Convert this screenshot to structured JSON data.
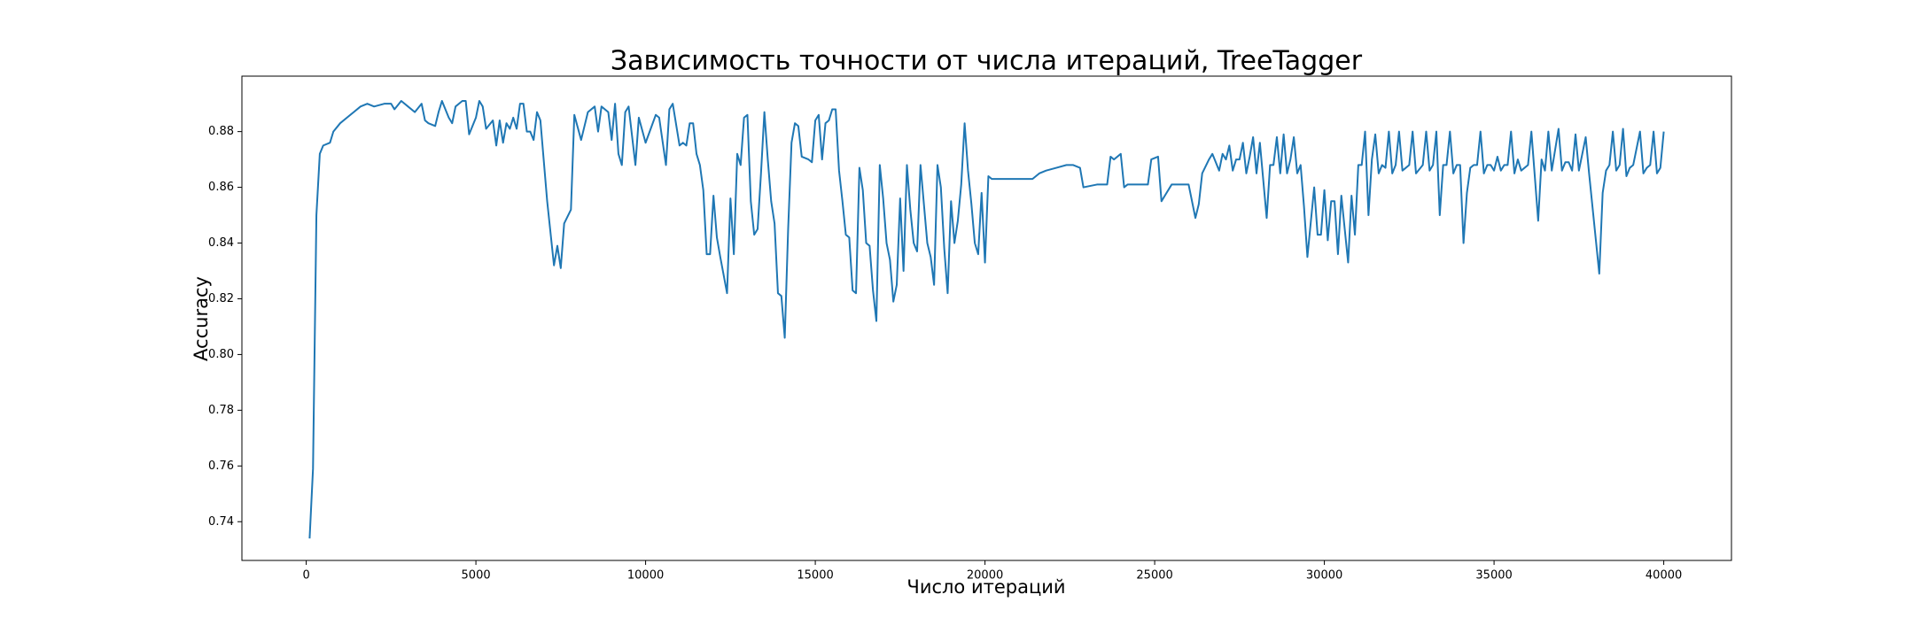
{
  "chart_data": {
    "type": "line",
    "title": "Зависимость точности от числа итераций, TreeTagger",
    "xlabel": "Число итераций",
    "ylabel": "Accuracy",
    "color": "#1f77b4",
    "x": [
      100,
      200,
      300,
      400,
      500,
      700,
      800,
      1000,
      1200,
      1400,
      1600,
      1800,
      2000,
      2300,
      2500,
      2600,
      2800,
      3000,
      3200,
      3400,
      3500,
      3600,
      3800,
      3900,
      4000,
      4200,
      4300,
      4400,
      4600,
      4700,
      4800,
      5000,
      5100,
      5200,
      5300,
      5500,
      5600,
      5700,
      5800,
      5900,
      6000,
      6100,
      6200,
      6300,
      6400,
      6500,
      6600,
      6700,
      6800,
      6900,
      7100,
      7300,
      7400,
      7500,
      7600,
      7800,
      7900,
      8100,
      8300,
      8500,
      8600,
      8700,
      8900,
      9000,
      9100,
      9200,
      9300,
      9400,
      9500,
      9700,
      9800,
      10000,
      10300,
      10400,
      10600,
      10700,
      10800,
      11000,
      11100,
      11200,
      11300,
      11400,
      11500,
      11600,
      11700,
      11800,
      11900,
      12000,
      12100,
      12200,
      12400,
      12500,
      12600,
      12700,
      12800,
      12900,
      13000,
      13100,
      13200,
      13300,
      13400,
      13500,
      13600,
      13700,
      13800,
      13900,
      14000,
      14100,
      14200,
      14300,
      14400,
      14500,
      14600,
      14800,
      14900,
      15000,
      15100,
      15200,
      15300,
      15400,
      15500,
      15600,
      15700,
      15800,
      15900,
      16000,
      16100,
      16200,
      16300,
      16400,
      16500,
      16600,
      16700,
      16800,
      16900,
      17000,
      17100,
      17200,
      17300,
      17400,
      17500,
      17600,
      17700,
      17800,
      17900,
      18000,
      18100,
      18300,
      18400,
      18500,
      18600,
      18700,
      18800,
      18900,
      19000,
      19100,
      19200,
      19300,
      19400,
      19500,
      19600,
      19700,
      19800,
      19900,
      20000,
      20100,
      20200,
      20300,
      20600,
      21000,
      21400,
      21500,
      21600,
      21800,
      22100,
      22400,
      22600,
      22800,
      22900,
      23300,
      23600,
      23700,
      23800,
      24000,
      24100,
      24200,
      24600,
      24800,
      24900,
      25100,
      25200,
      25300,
      25500,
      25900,
      26000,
      26200,
      26300,
      26400,
      26600,
      26700,
      26900,
      27000,
      27100,
      27200,
      27300,
      27400,
      27500,
      27600,
      27700,
      27800,
      27900,
      28000,
      28100,
      28300,
      28400,
      28500,
      28600,
      28700,
      28800,
      28900,
      29000,
      29100,
      29200,
      29300,
      29400,
      29500,
      29700,
      29800,
      29900,
      30000,
      30100,
      30200,
      30300,
      30400,
      30500,
      30600,
      30700,
      30800,
      30900,
      31000,
      31100,
      31200,
      31300,
      31400,
      31500,
      31600,
      31700,
      31800,
      31900,
      32000,
      32100,
      32200,
      32300,
      32400,
      32500,
      32600,
      32700,
      32900,
      33000,
      33100,
      33200,
      33300,
      33400,
      33500,
      33600,
      33700,
      33800,
      33900,
      34000,
      34100,
      34200,
      34300,
      34400,
      34500,
      34600,
      34700,
      34800,
      34900,
      35000,
      35100,
      35200,
      35300,
      35400,
      35500,
      35600,
      35700,
      35800,
      36000,
      36100,
      36300,
      36400,
      36500,
      36600,
      36700,
      36900,
      37000,
      37100,
      37200,
      37300,
      37400,
      37500,
      37700,
      37800,
      38100,
      38200,
      38300,
      38400,
      38500,
      38600,
      38700,
      38800,
      38900,
      39000,
      39100,
      39300,
      39400,
      39500,
      39600,
      39700,
      39800,
      39900,
      40000
    ],
    "values": [
      0.734,
      0.759,
      0.85,
      0.872,
      0.875,
      0.876,
      0.88,
      0.883,
      0.885,
      0.887,
      0.889,
      0.89,
      0.889,
      0.89,
      0.89,
      0.888,
      0.891,
      0.889,
      0.887,
      0.89,
      0.884,
      0.883,
      0.882,
      0.887,
      0.891,
      0.885,
      0.883,
      0.889,
      0.891,
      0.891,
      0.879,
      0.885,
      0.891,
      0.889,
      0.881,
      0.884,
      0.875,
      0.884,
      0.876,
      0.883,
      0.881,
      0.885,
      0.881,
      0.89,
      0.89,
      0.88,
      0.88,
      0.877,
      0.887,
      0.884,
      0.855,
      0.832,
      0.839,
      0.831,
      0.847,
      0.852,
      0.886,
      0.877,
      0.887,
      0.889,
      0.88,
      0.889,
      0.887,
      0.877,
      0.89,
      0.872,
      0.868,
      0.887,
      0.889,
      0.868,
      0.885,
      0.876,
      0.886,
      0.885,
      0.868,
      0.888,
      0.89,
      0.875,
      0.876,
      0.875,
      0.883,
      0.883,
      0.872,
      0.868,
      0.859,
      0.836,
      0.836,
      0.857,
      0.842,
      0.835,
      0.822,
      0.856,
      0.836,
      0.872,
      0.868,
      0.885,
      0.886,
      0.855,
      0.843,
      0.845,
      0.865,
      0.887,
      0.87,
      0.855,
      0.847,
      0.822,
      0.821,
      0.806,
      0.845,
      0.876,
      0.883,
      0.882,
      0.871,
      0.87,
      0.869,
      0.884,
      0.886,
      0.87,
      0.883,
      0.884,
      0.888,
      0.888,
      0.866,
      0.855,
      0.843,
      0.842,
      0.823,
      0.822,
      0.867,
      0.859,
      0.84,
      0.839,
      0.823,
      0.812,
      0.868,
      0.856,
      0.84,
      0.834,
      0.819,
      0.825,
      0.856,
      0.83,
      0.868,
      0.852,
      0.84,
      0.837,
      0.868,
      0.84,
      0.835,
      0.825,
      0.868,
      0.86,
      0.838,
      0.822,
      0.855,
      0.84,
      0.848,
      0.861,
      0.883,
      0.866,
      0.854,
      0.84,
      0.836,
      0.858,
      0.833,
      0.864,
      0.863,
      0.863,
      0.863,
      0.863,
      0.863,
      0.864,
      0.865,
      0.866,
      0.867,
      0.868,
      0.868,
      0.867,
      0.86,
      0.861,
      0.861,
      0.871,
      0.87,
      0.872,
      0.86,
      0.861,
      0.861,
      0.861,
      0.87,
      0.871,
      0.855,
      0.857,
      0.861,
      0.861,
      0.861,
      0.849,
      0.854,
      0.865,
      0.87,
      0.872,
      0.866,
      0.872,
      0.87,
      0.875,
      0.866,
      0.87,
      0.87,
      0.876,
      0.865,
      0.871,
      0.878,
      0.865,
      0.876,
      0.849,
      0.868,
      0.868,
      0.878,
      0.865,
      0.879,
      0.865,
      0.87,
      0.878,
      0.865,
      0.868,
      0.853,
      0.835,
      0.86,
      0.843,
      0.843,
      0.859,
      0.841,
      0.855,
      0.855,
      0.836,
      0.857,
      0.845,
      0.833,
      0.857,
      0.843,
      0.868,
      0.868,
      0.88,
      0.85,
      0.87,
      0.879,
      0.865,
      0.868,
      0.867,
      0.88,
      0.865,
      0.868,
      0.88,
      0.866,
      0.867,
      0.868,
      0.88,
      0.865,
      0.868,
      0.88,
      0.866,
      0.868,
      0.88,
      0.85,
      0.868,
      0.868,
      0.88,
      0.865,
      0.868,
      0.868,
      0.84,
      0.858,
      0.867,
      0.868,
      0.868,
      0.88,
      0.865,
      0.868,
      0.868,
      0.866,
      0.871,
      0.866,
      0.868,
      0.868,
      0.88,
      0.865,
      0.87,
      0.866,
      0.868,
      0.88,
      0.848,
      0.87,
      0.866,
      0.88,
      0.866,
      0.881,
      0.866,
      0.869,
      0.869,
      0.866,
      0.879,
      0.866,
      0.878,
      0.865,
      0.829,
      0.858,
      0.866,
      0.868,
      0.88,
      0.866,
      0.868,
      0.881,
      0.864,
      0.867,
      0.868,
      0.88,
      0.865,
      0.867,
      0.868,
      0.88,
      0.865,
      0.867,
      0.88
    ],
    "xlim": [
      -1895,
      41995
    ],
    "ylim": [
      0.7261,
      0.8999
    ],
    "xticks": [
      0,
      5000,
      10000,
      15000,
      20000,
      25000,
      30000,
      35000,
      40000
    ],
    "yticks": [
      0.74,
      0.76,
      0.78,
      {
        "value": 0.8,
        "label": "0.80"
      },
      0.82,
      0.84,
      0.86,
      0.88
    ],
    "grid": false
  }
}
